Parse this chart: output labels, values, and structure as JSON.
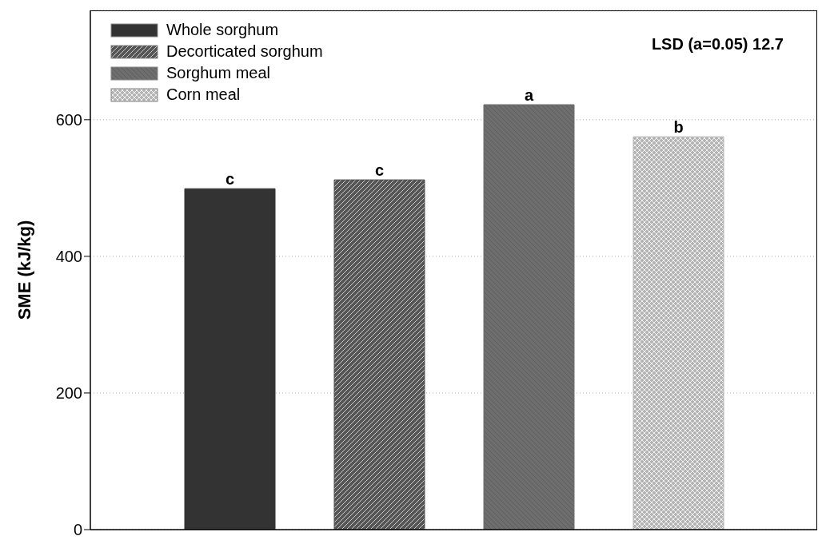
{
  "chart_data": {
    "type": "bar",
    "ylabel": "SME (kJ/kg)",
    "categories": [
      null
    ],
    "series": [
      {
        "name": "Whole sorghum",
        "color": "#333333",
        "values": [
          499
        ],
        "value_labels": [
          "c"
        ]
      },
      {
        "name": "Decorticated sorghum",
        "color": "#555555",
        "values": [
          512
        ],
        "value_labels": [
          "c"
        ]
      },
      {
        "name": "Sorghum meal",
        "color": "#6e6e6e",
        "values": [
          622
        ],
        "value_labels": [
          "a"
        ]
      },
      {
        "name": "Corn meal",
        "color": "#b4b4b4",
        "values": [
          575
        ],
        "value_labels": [
          "b"
        ]
      }
    ],
    "ylim": [
      0,
      760
    ],
    "yticks": [
      0,
      200,
      400,
      600
    ],
    "grid": "y",
    "legend": "top left",
    "annotations": [
      "LSD (a=0.05) 12.7"
    ]
  }
}
